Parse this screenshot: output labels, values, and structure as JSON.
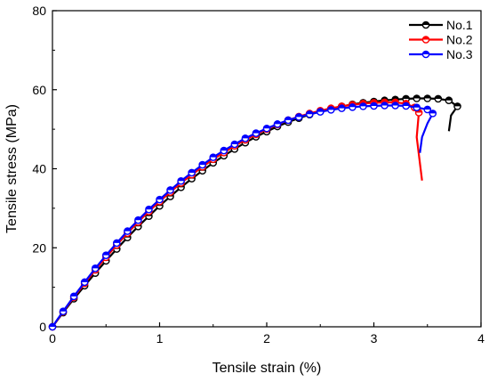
{
  "chart_data": {
    "type": "line",
    "title": "",
    "xlabel": "Tensile strain (%)",
    "ylabel": "Tensile stress (MPa)",
    "xlim": [
      0,
      4
    ],
    "ylim": [
      0,
      80
    ],
    "xticks": [
      "0",
      "1",
      "2",
      "3",
      "4"
    ],
    "yticks": [
      "0",
      "20",
      "40",
      "60",
      "80"
    ],
    "grid": false,
    "legend_position": "top-right",
    "series": [
      {
        "name": "No.1",
        "color": "#000000",
        "x": [
          0,
          0.05,
          0.1,
          0.2,
          0.3,
          0.4,
          0.5,
          0.6,
          0.7,
          0.8,
          0.9,
          1.0,
          1.1,
          1.2,
          1.3,
          1.4,
          1.5,
          1.6,
          1.7,
          1.8,
          1.9,
          2.0,
          2.1,
          2.2,
          2.3,
          2.4,
          2.5,
          2.6,
          2.7,
          2.8,
          2.9,
          3.0,
          3.1,
          3.2,
          3.3,
          3.4,
          3.5,
          3.6,
          3.7,
          3.78,
          3.72,
          3.7
        ],
        "y": [
          0,
          1.8,
          3.6,
          7.1,
          10.4,
          13.6,
          16.7,
          19.7,
          22.6,
          25.4,
          28.0,
          30.6,
          33.0,
          35.3,
          37.5,
          39.5,
          41.5,
          43.3,
          45.0,
          46.6,
          48.1,
          49.4,
          50.7,
          51.8,
          52.8,
          53.7,
          54.5,
          55.2,
          55.8,
          56.3,
          56.7,
          57.0,
          57.3,
          57.5,
          57.7,
          57.8,
          57.8,
          57.7,
          57.3,
          55.8,
          53.5,
          49.5
        ],
        "markers": [
          0,
          0.1,
          0.2,
          0.3,
          0.4,
          0.5,
          0.6,
          0.7,
          0.8,
          0.9,
          1.0,
          1.1,
          1.2,
          1.3,
          1.4,
          1.5,
          1.6,
          1.7,
          1.8,
          1.9,
          2.0,
          2.1,
          2.2,
          2.3,
          2.4,
          2.5,
          2.6,
          2.7,
          2.8,
          2.9,
          3.0,
          3.1,
          3.2,
          3.3,
          3.4,
          3.5,
          3.6,
          3.7,
          3.78
        ]
      },
      {
        "name": "No.2",
        "color": "#ff0000",
        "x": [
          0,
          0.05,
          0.1,
          0.2,
          0.3,
          0.4,
          0.5,
          0.6,
          0.7,
          0.8,
          0.9,
          1.0,
          1.1,
          1.2,
          1.3,
          1.4,
          1.5,
          1.6,
          1.7,
          1.8,
          1.9,
          2.0,
          2.1,
          2.2,
          2.3,
          2.4,
          2.5,
          2.6,
          2.7,
          2.8,
          2.9,
          3.0,
          3.1,
          3.2,
          3.3,
          3.38,
          3.42,
          3.4,
          3.45
        ],
        "y": [
          0,
          1.9,
          3.8,
          7.5,
          11.0,
          14.4,
          17.6,
          20.7,
          23.7,
          26.5,
          29.2,
          31.7,
          34.1,
          36.4,
          38.5,
          40.5,
          42.4,
          44.1,
          45.8,
          47.3,
          48.7,
          50.0,
          51.2,
          52.3,
          53.2,
          54.0,
          54.7,
          55.3,
          55.8,
          56.2,
          56.5,
          56.7,
          56.8,
          56.8,
          56.5,
          55.5,
          54.2,
          48.0,
          37.0
        ],
        "markers": [
          0,
          0.1,
          0.2,
          0.3,
          0.4,
          0.5,
          0.6,
          0.7,
          0.8,
          0.9,
          1.0,
          1.1,
          1.2,
          1.3,
          1.4,
          1.5,
          1.6,
          1.7,
          1.8,
          1.9,
          2.0,
          2.1,
          2.2,
          2.3,
          2.4,
          2.5,
          2.6,
          2.7,
          2.8,
          2.9,
          3.0,
          3.1,
          3.2,
          3.3,
          3.38,
          3.42
        ]
      },
      {
        "name": "No.3",
        "color": "#0000ff",
        "x": [
          0,
          0.05,
          0.1,
          0.2,
          0.3,
          0.4,
          0.5,
          0.6,
          0.7,
          0.8,
          0.9,
          1.0,
          1.1,
          1.2,
          1.3,
          1.4,
          1.5,
          1.6,
          1.7,
          1.8,
          1.9,
          2.0,
          2.1,
          2.2,
          2.3,
          2.4,
          2.5,
          2.6,
          2.7,
          2.8,
          2.9,
          3.0,
          3.1,
          3.2,
          3.3,
          3.4,
          3.5,
          3.55,
          3.5,
          3.45,
          3.43
        ],
        "y": [
          0,
          2.0,
          3.9,
          7.7,
          11.3,
          14.8,
          18.1,
          21.2,
          24.2,
          27.0,
          29.7,
          32.2,
          34.6,
          36.9,
          39.0,
          41.0,
          42.9,
          44.6,
          46.2,
          47.7,
          49.0,
          50.2,
          51.3,
          52.3,
          53.1,
          53.8,
          54.4,
          54.9,
          55.3,
          55.6,
          55.8,
          55.9,
          56.0,
          56.0,
          55.9,
          55.5,
          55.0,
          54.0,
          51.5,
          48.0,
          44.0
        ],
        "markers": [
          0,
          0.1,
          0.2,
          0.3,
          0.4,
          0.5,
          0.6,
          0.7,
          0.8,
          0.9,
          1.0,
          1.1,
          1.2,
          1.3,
          1.4,
          1.5,
          1.6,
          1.7,
          1.8,
          1.9,
          2.0,
          2.1,
          2.2,
          2.3,
          2.4,
          2.5,
          2.6,
          2.7,
          2.8,
          2.9,
          3.0,
          3.1,
          3.2,
          3.3,
          3.4,
          3.5,
          3.55
        ]
      }
    ]
  }
}
